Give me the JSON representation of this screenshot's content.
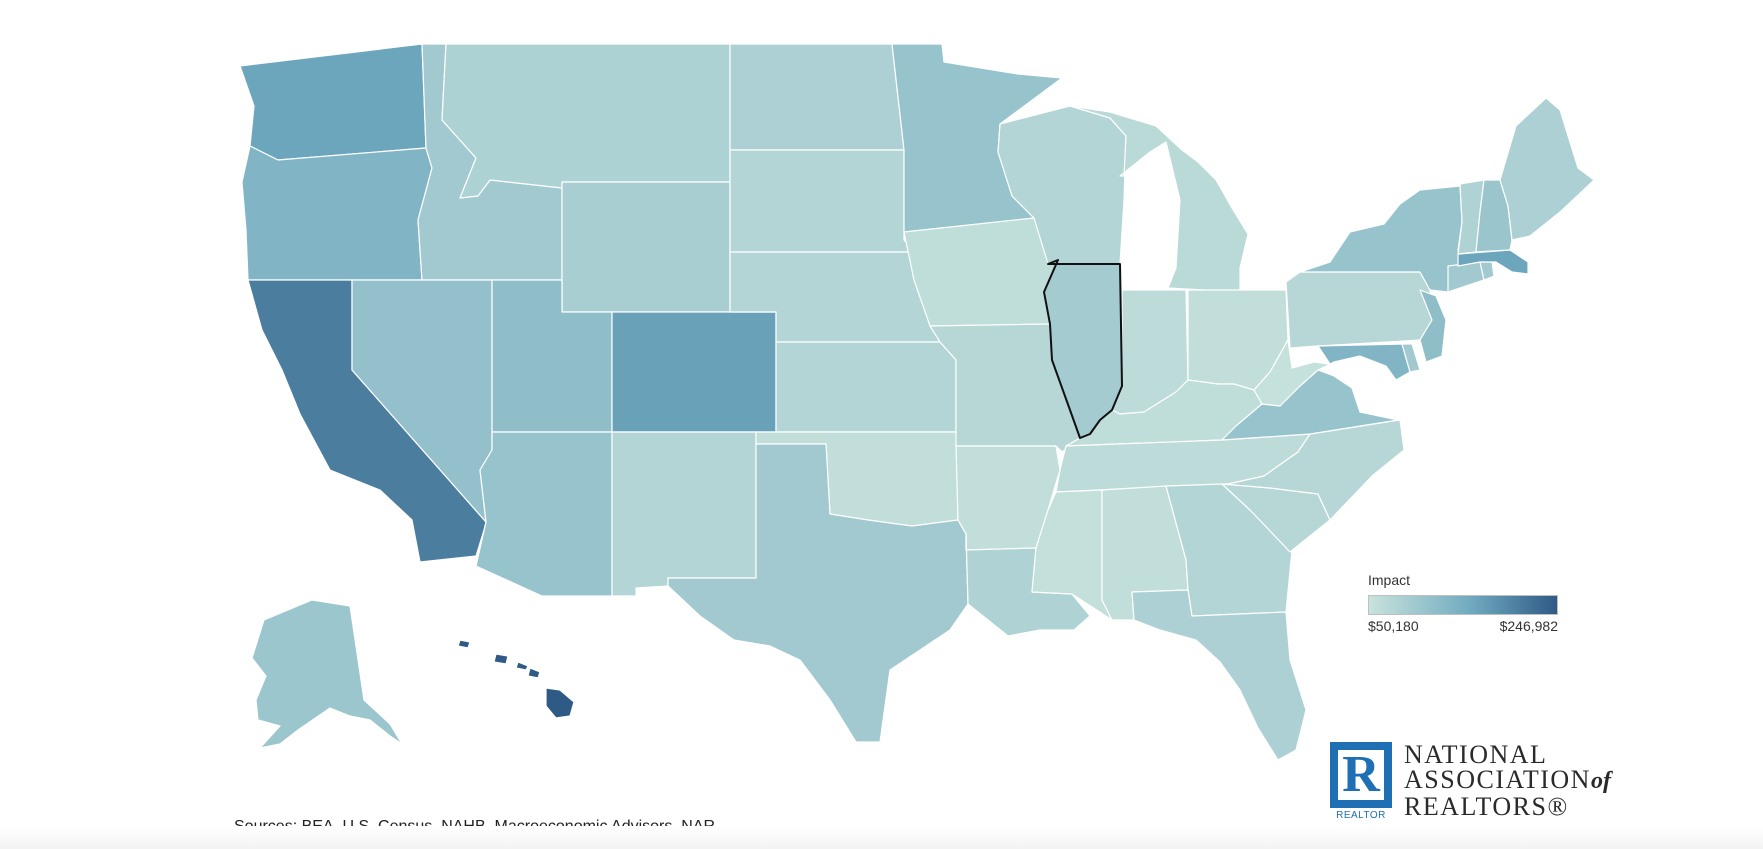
{
  "map": {
    "selected_state": "Illinois",
    "states": [
      {
        "name": "Washington",
        "impact_level": 0.52
      },
      {
        "name": "Oregon",
        "impact_level": 0.4
      },
      {
        "name": "California",
        "impact_level": 0.78
      },
      {
        "name": "Idaho",
        "impact_level": 0.22
      },
      {
        "name": "Nevada",
        "impact_level": 0.3
      },
      {
        "name": "Montana",
        "impact_level": 0.15
      },
      {
        "name": "Wyoming",
        "impact_level": 0.18
      },
      {
        "name": "Utah",
        "impact_level": 0.32
      },
      {
        "name": "Colorado",
        "impact_level": 0.55
      },
      {
        "name": "Arizona",
        "impact_level": 0.28
      },
      {
        "name": "New Mexico",
        "impact_level": 0.12
      },
      {
        "name": "North Dakota",
        "impact_level": 0.16
      },
      {
        "name": "South Dakota",
        "impact_level": 0.12
      },
      {
        "name": "Nebraska",
        "impact_level": 0.12
      },
      {
        "name": "Kansas",
        "impact_level": 0.12
      },
      {
        "name": "Oklahoma",
        "impact_level": 0.04
      },
      {
        "name": "Texas",
        "impact_level": 0.22
      },
      {
        "name": "Minnesota",
        "impact_level": 0.28
      },
      {
        "name": "Iowa",
        "impact_level": 0.05
      },
      {
        "name": "Missouri",
        "impact_level": 0.1
      },
      {
        "name": "Arkansas",
        "impact_level": 0.04
      },
      {
        "name": "Louisiana",
        "impact_level": 0.14
      },
      {
        "name": "Wisconsin",
        "impact_level": 0.12
      },
      {
        "name": "Illinois",
        "impact_level": 0.2
      },
      {
        "name": "Michigan",
        "impact_level": 0.08
      },
      {
        "name": "Indiana",
        "impact_level": 0.06
      },
      {
        "name": "Ohio",
        "impact_level": 0.04
      },
      {
        "name": "Kentucky",
        "impact_level": 0.05
      },
      {
        "name": "Tennessee",
        "impact_level": 0.06
      },
      {
        "name": "Mississippi",
        "impact_level": 0.03
      },
      {
        "name": "Alabama",
        "impact_level": 0.04
      },
      {
        "name": "Georgia",
        "impact_level": 0.12
      },
      {
        "name": "Florida",
        "impact_level": 0.16
      },
      {
        "name": "South Carolina",
        "impact_level": 0.1
      },
      {
        "name": "North Carolina",
        "impact_level": 0.1
      },
      {
        "name": "Virginia",
        "impact_level": 0.28
      },
      {
        "name": "West Virginia",
        "impact_level": 0.02
      },
      {
        "name": "Pennsylvania",
        "impact_level": 0.1
      },
      {
        "name": "New York",
        "impact_level": 0.28
      },
      {
        "name": "New Jersey",
        "impact_level": 0.32
      },
      {
        "name": "Maryland",
        "impact_level": 0.4
      },
      {
        "name": "Delaware",
        "impact_level": 0.22
      },
      {
        "name": "Connecticut",
        "impact_level": 0.22
      },
      {
        "name": "Rhode Island",
        "impact_level": 0.22
      },
      {
        "name": "Massachusetts",
        "impact_level": 0.52
      },
      {
        "name": "Vermont",
        "impact_level": 0.14
      },
      {
        "name": "New Hampshire",
        "impact_level": 0.26
      },
      {
        "name": "Maine",
        "impact_level": 0.16
      },
      {
        "name": "Alaska",
        "impact_level": 0.25
      },
      {
        "name": "Hawaii",
        "impact_level": 1.0
      }
    ]
  },
  "legend": {
    "title": "Impact",
    "min_label": "$50,180",
    "max_label": "$246,982",
    "color_low": "#c8e3dc",
    "color_mid": "#6fa9bf",
    "color_high": "#2f5a86"
  },
  "sources": "Sources: BEA, U.S. Census, NAHB, Macroeconomic Advisors, NAR",
  "logo": {
    "mark_letter": "R",
    "mark_caption": "REALTOR",
    "line1": "NATIONAL",
    "line2": "ASSOCIATION",
    "line2_suffix": "of",
    "line3": "REALTORS®",
    "brand_color": "#1e6fb3"
  }
}
